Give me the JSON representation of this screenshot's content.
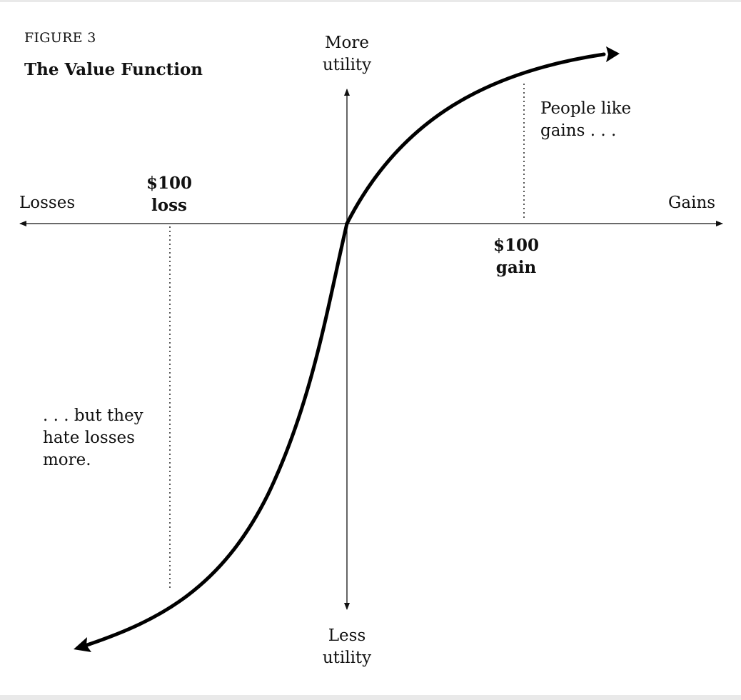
{
  "figure": {
    "number": "FIGURE 3",
    "title": "The Value Function"
  },
  "axes": {
    "y_top": "More\nutility",
    "y_bottom": "Less\nutility",
    "x_left": "Losses",
    "x_right": "Gains"
  },
  "markers": {
    "loss": "$100\nloss",
    "gain": "$100\ngain"
  },
  "annotations": {
    "gains_note": "People like\ngains . . .",
    "losses_note": ". . . but they\nhate losses\nmore."
  },
  "colors": {
    "curve": "#000000",
    "axis": "#111111",
    "background": "#ffffff",
    "frame": "#e9e9e9"
  }
}
